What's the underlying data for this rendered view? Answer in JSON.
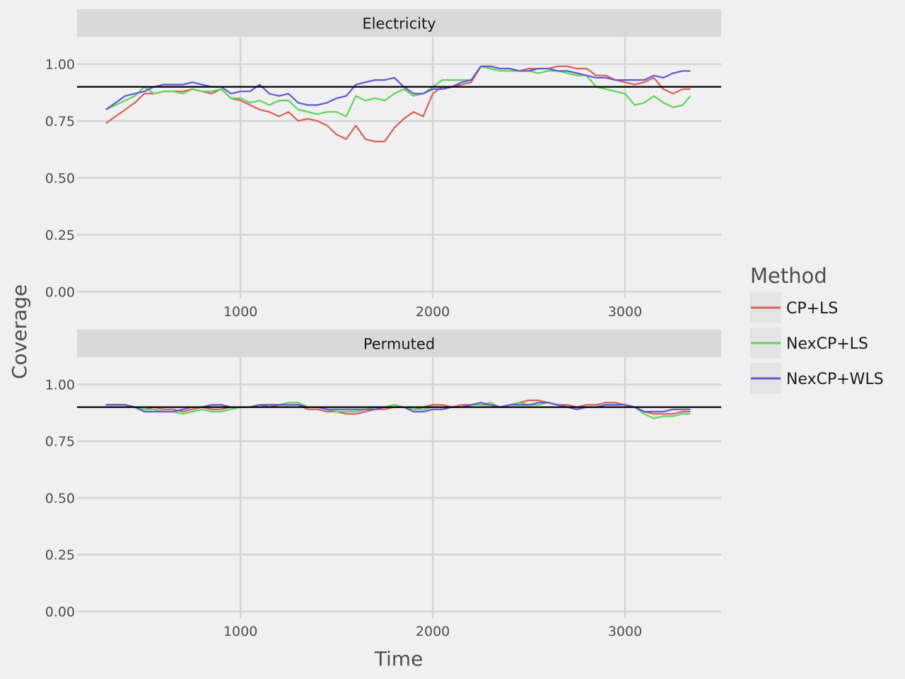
{
  "chart_data": {
    "type": "line",
    "xlabel": "Time",
    "ylabel": "Coverage",
    "xlim": [
      150,
      3500
    ],
    "ylim": [
      -0.03,
      1.12
    ],
    "x_ticks": [
      1000,
      2000,
      3000
    ],
    "y_ticks": [
      0,
      0.25,
      0.5,
      0.75,
      1.0
    ],
    "y_tick_labels": [
      "0.00",
      "0.25",
      "0.50",
      "0.75",
      "1.00"
    ],
    "grid": true,
    "reference_line": {
      "y": 0.9,
      "color": "#000000"
    },
    "legend": {
      "title": "Method",
      "placement": "right",
      "entries": [
        "CP+LS",
        "NexCP+LS",
        "NexCP+WLS"
      ]
    },
    "series_colors": {
      "CP+LS": "#d95f59",
      "NexCP+LS": "#5cd45c",
      "NexCP+WLS": "#6158d8"
    },
    "panels": [
      {
        "title": "Electricity",
        "x": [
          300,
          350,
          400,
          450,
          500,
          550,
          600,
          650,
          700,
          750,
          800,
          850,
          900,
          950,
          1000,
          1050,
          1100,
          1150,
          1200,
          1250,
          1300,
          1350,
          1400,
          1450,
          1500,
          1550,
          1600,
          1650,
          1700,
          1750,
          1800,
          1850,
          1900,
          1950,
          2000,
          2050,
          2100,
          2150,
          2200,
          2250,
          2300,
          2350,
          2400,
          2450,
          2500,
          2550,
          2600,
          2650,
          2700,
          2750,
          2800,
          2850,
          2900,
          2950,
          3000,
          3050,
          3100,
          3150,
          3200,
          3250,
          3300,
          3340
        ],
        "series": [
          {
            "name": "CP+LS",
            "values": [
              0.74,
              0.77,
              0.8,
              0.83,
              0.87,
              0.87,
              0.88,
              0.88,
              0.88,
              0.89,
              0.88,
              0.87,
              0.89,
              0.85,
              0.84,
              0.82,
              0.8,
              0.79,
              0.77,
              0.79,
              0.75,
              0.76,
              0.75,
              0.73,
              0.69,
              0.67,
              0.73,
              0.67,
              0.66,
              0.66,
              0.72,
              0.76,
              0.79,
              0.77,
              0.87,
              0.9,
              0.9,
              0.91,
              0.92,
              0.99,
              0.99,
              0.98,
              0.98,
              0.97,
              0.98,
              0.98,
              0.98,
              0.99,
              0.99,
              0.98,
              0.98,
              0.95,
              0.95,
              0.93,
              0.92,
              0.91,
              0.92,
              0.94,
              0.89,
              0.87,
              0.89,
              0.89
            ]
          },
          {
            "name": "NexCP+LS",
            "values": [
              0.8,
              0.82,
              0.84,
              0.86,
              0.9,
              0.87,
              0.88,
              0.88,
              0.87,
              0.89,
              0.88,
              0.88,
              0.89,
              0.85,
              0.85,
              0.83,
              0.84,
              0.82,
              0.84,
              0.84,
              0.8,
              0.79,
              0.78,
              0.79,
              0.79,
              0.77,
              0.86,
              0.84,
              0.85,
              0.84,
              0.87,
              0.89,
              0.86,
              0.87,
              0.9,
              0.93,
              0.93,
              0.93,
              0.93,
              0.99,
              0.98,
              0.97,
              0.97,
              0.97,
              0.97,
              0.96,
              0.97,
              0.97,
              0.96,
              0.95,
              0.95,
              0.9,
              0.89,
              0.88,
              0.87,
              0.82,
              0.83,
              0.86,
              0.83,
              0.81,
              0.82,
              0.86
            ]
          },
          {
            "name": "NexCP+WLS",
            "values": [
              0.8,
              0.83,
              0.86,
              0.87,
              0.88,
              0.9,
              0.91,
              0.91,
              0.91,
              0.92,
              0.91,
              0.9,
              0.9,
              0.87,
              0.88,
              0.88,
              0.91,
              0.87,
              0.86,
              0.87,
              0.83,
              0.82,
              0.82,
              0.83,
              0.85,
              0.86,
              0.91,
              0.92,
              0.93,
              0.93,
              0.94,
              0.9,
              0.87,
              0.87,
              0.89,
              0.89,
              0.9,
              0.92,
              0.93,
              0.99,
              0.99,
              0.98,
              0.98,
              0.97,
              0.97,
              0.98,
              0.98,
              0.97,
              0.97,
              0.96,
              0.95,
              0.94,
              0.94,
              0.93,
              0.93,
              0.93,
              0.93,
              0.95,
              0.94,
              0.96,
              0.97,
              0.97
            ]
          }
        ]
      },
      {
        "title": "Permuted",
        "x": [
          300,
          350,
          400,
          450,
          500,
          550,
          600,
          650,
          700,
          750,
          800,
          850,
          900,
          950,
          1000,
          1050,
          1100,
          1150,
          1200,
          1250,
          1300,
          1350,
          1400,
          1450,
          1500,
          1550,
          1600,
          1650,
          1700,
          1750,
          1800,
          1850,
          1900,
          1950,
          2000,
          2050,
          2100,
          2150,
          2200,
          2250,
          2300,
          2350,
          2400,
          2450,
          2500,
          2550,
          2600,
          2650,
          2700,
          2750,
          2800,
          2850,
          2900,
          2950,
          3000,
          3050,
          3100,
          3150,
          3200,
          3250,
          3300,
          3340
        ],
        "series": [
          {
            "name": "CP+LS",
            "values": [
              0.91,
              0.91,
              0.91,
              0.9,
              0.89,
              0.9,
              0.89,
              0.89,
              0.88,
              0.89,
              0.9,
              0.89,
              0.89,
              0.9,
              0.9,
              0.9,
              0.91,
              0.9,
              0.91,
              0.91,
              0.91,
              0.89,
              0.89,
              0.88,
              0.88,
              0.87,
              0.87,
              0.88,
              0.89,
              0.89,
              0.9,
              0.9,
              0.89,
              0.9,
              0.91,
              0.91,
              0.9,
              0.91,
              0.91,
              0.91,
              0.91,
              0.9,
              0.91,
              0.92,
              0.93,
              0.93,
              0.92,
              0.91,
              0.91,
              0.9,
              0.91,
              0.91,
              0.92,
              0.92,
              0.91,
              0.9,
              0.88,
              0.87,
              0.87,
              0.87,
              0.88,
              0.88
            ]
          },
          {
            "name": "NexCP+LS",
            "values": [
              0.91,
              0.91,
              0.91,
              0.9,
              0.89,
              0.89,
              0.88,
              0.88,
              0.87,
              0.88,
              0.89,
              0.88,
              0.88,
              0.89,
              0.9,
              0.9,
              0.91,
              0.91,
              0.91,
              0.92,
              0.92,
              0.9,
              0.9,
              0.89,
              0.88,
              0.88,
              0.88,
              0.89,
              0.9,
              0.9,
              0.91,
              0.9,
              0.89,
              0.89,
              0.9,
              0.9,
              0.9,
              0.9,
              0.91,
              0.91,
              0.92,
              0.9,
              0.91,
              0.92,
              0.91,
              0.91,
              0.92,
              0.91,
              0.9,
              0.89,
              0.9,
              0.9,
              0.91,
              0.91,
              0.91,
              0.9,
              0.87,
              0.85,
              0.86,
              0.86,
              0.87,
              0.87
            ]
          },
          {
            "name": "NexCP+WLS",
            "values": [
              0.91,
              0.91,
              0.91,
              0.9,
              0.88,
              0.88,
              0.88,
              0.88,
              0.89,
              0.9,
              0.9,
              0.91,
              0.91,
              0.9,
              0.9,
              0.9,
              0.91,
              0.91,
              0.91,
              0.91,
              0.91,
              0.9,
              0.9,
              0.89,
              0.89,
              0.89,
              0.89,
              0.89,
              0.89,
              0.9,
              0.9,
              0.9,
              0.88,
              0.88,
              0.89,
              0.89,
              0.9,
              0.9,
              0.91,
              0.92,
              0.91,
              0.9,
              0.91,
              0.91,
              0.91,
              0.92,
              0.92,
              0.91,
              0.9,
              0.89,
              0.9,
              0.9,
              0.91,
              0.91,
              0.91,
              0.9,
              0.88,
              0.88,
              0.88,
              0.89,
              0.89,
              0.89
            ]
          }
        ]
      }
    ]
  }
}
